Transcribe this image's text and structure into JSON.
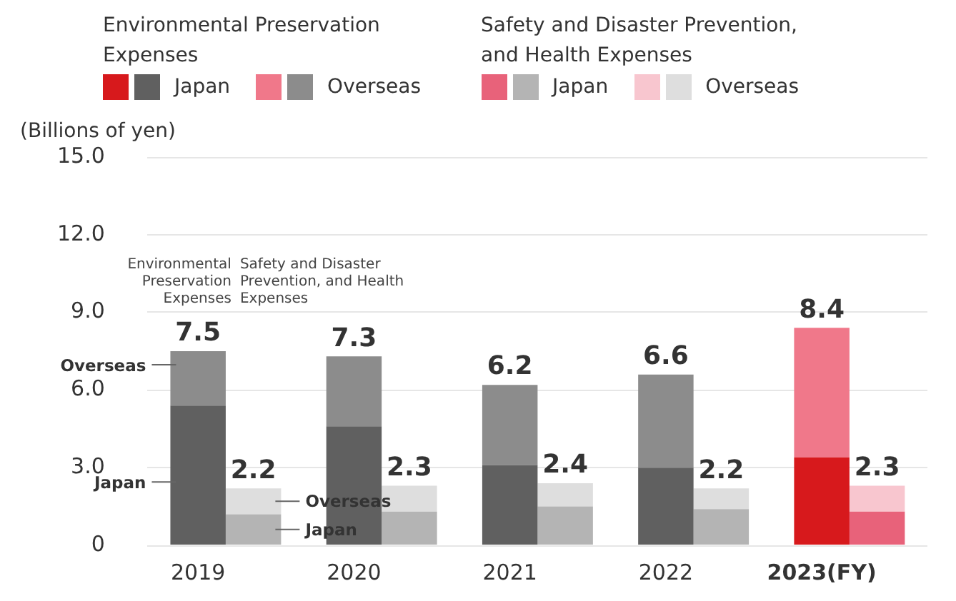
{
  "chart_data": {
    "type": "bar",
    "stacked": true,
    "ylabel": "(Billions of yen)",
    "categories": [
      "2019",
      null,
      "2020",
      null,
      "2021",
      null,
      "2022",
      null,
      "2023(FY)",
      null
    ],
    "series": [
      {
        "name": "Japan",
        "color": "#606060",
        "colors": [
          "#606060",
          null,
          "#606060",
          null,
          "#606060",
          null,
          "#606060",
          null,
          "#d7191c",
          null
        ],
        "values": [
          5.4,
          null,
          4.6,
          null,
          3.1,
          null,
          3.0,
          null,
          3.4,
          null
        ]
      },
      {
        "name": "Overseas",
        "color": "#8c8c8c",
        "colors": [
          "#8c8c8c",
          null,
          "#8c8c8c",
          null,
          "#8c8c8c",
          null,
          "#8c8c8c",
          null,
          "#f0788a",
          null
        ],
        "values": [
          2.1,
          null,
          2.7,
          null,
          3.1,
          null,
          3.6,
          null,
          5.0,
          null
        ]
      },
      {
        "name": "Japan",
        "color": "#b4b4b4",
        "colors": [
          null,
          "#b4b4b4",
          null,
          "#b4b4b4",
          null,
          "#b4b4b4",
          null,
          "#b4b4b4",
          null,
          "#e8627a"
        ],
        "values": [
          null,
          1.2,
          null,
          1.3,
          null,
          1.5,
          null,
          1.4,
          null,
          1.3
        ]
      },
      {
        "name": "Overseas",
        "color": "#dedede",
        "colors": [
          null,
          "#dedede",
          null,
          "#dedede",
          null,
          "#dedede",
          null,
          "#dedede",
          null,
          "#f8c6cf"
        ],
        "values": [
          null,
          1.0,
          null,
          1.0,
          null,
          0.9,
          null,
          0.8,
          null,
          1.0
        ]
      }
    ],
    "totals": [
      "7.5",
      "2.2",
      "7.3",
      "2.3",
      "6.2",
      "2.4",
      "6.6",
      "2.2",
      "8.4",
      "2.3"
    ],
    "annotations": [
      "Environmental Preservation Expenses",
      "Safety and Disaster Prevention, and Health Expenses",
      "Environmental Preservation Expenses",
      "Safety and Disaster Prevention, and Health Expenses",
      "Overseas",
      "Japan",
      "Overseas",
      "Japan"
    ],
    "ylim": [
      0,
      15
    ],
    "yticks": [
      {
        "value": 0,
        "label": "0"
      },
      {
        "value": 3,
        "label": "3.0"
      },
      {
        "value": 6,
        "label": "6.0"
      },
      {
        "value": 9,
        "label": "9.0"
      },
      {
        "value": 12,
        "label": "12.0"
      },
      {
        "value": 15,
        "label": "15.0"
      }
    ],
    "grid": "y",
    "legend": "top"
  }
}
